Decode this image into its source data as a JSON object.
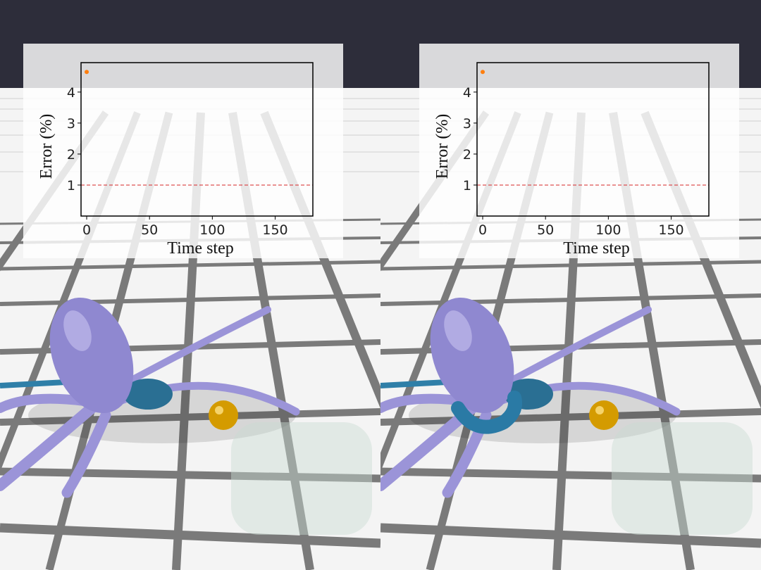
{
  "chart_data": [
    {
      "type": "scatter",
      "xlabel": "Time step",
      "ylabel": "Error (%)",
      "x": [
        0
      ],
      "series": [
        {
          "color": "#ff7f0e",
          "values": [
            4.65
          ]
        }
      ],
      "xlim": [
        -4.5,
        180
      ],
      "xticks": [
        0,
        50,
        100,
        150
      ],
      "ylim": [
        0,
        4.95
      ],
      "yticks": [
        1,
        2,
        3,
        4
      ],
      "hline": {
        "value": 1,
        "color": "#d62728"
      }
    },
    {
      "type": "scatter",
      "xlabel": "Time step",
      "ylabel": "Error (%)",
      "x": [
        0
      ],
      "series": [
        {
          "color": "#ff7f0e",
          "values": [
            4.65
          ]
        }
      ],
      "xlim": [
        -4.5,
        180
      ],
      "xticks": [
        0,
        50,
        100,
        150
      ],
      "ylim": [
        0,
        4.95
      ],
      "yticks": [
        1,
        2,
        3,
        4
      ],
      "hline": {
        "value": 1,
        "color": "#d62728"
      }
    }
  ]
}
